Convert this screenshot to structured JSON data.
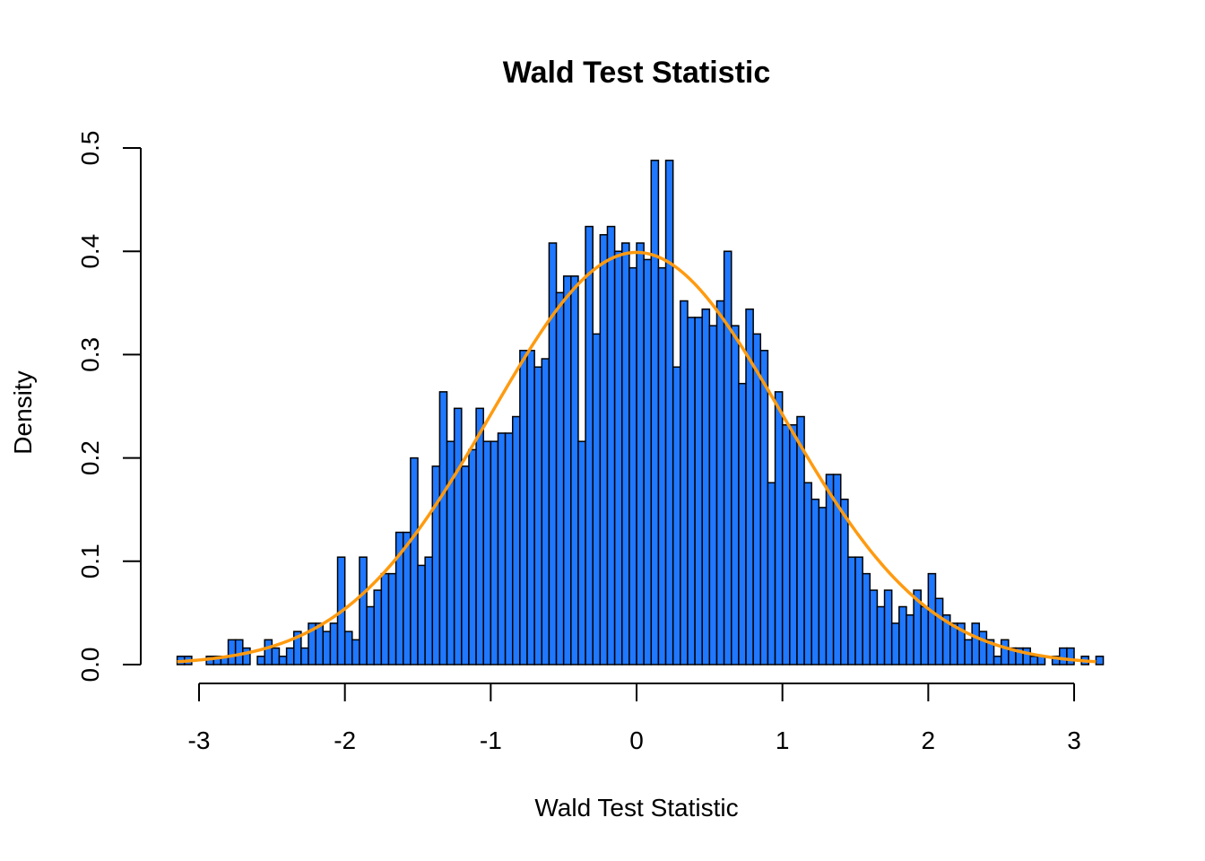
{
  "chart_data": {
    "type": "bar",
    "title": "Wald Test Statistic",
    "xlabel": "Wald Test Statistic",
    "ylabel": "Density",
    "xlim": [
      -3.15,
      3.15
    ],
    "ylim": [
      0,
      0.5
    ],
    "x_ticks": [
      -3,
      -2,
      -1,
      0,
      1,
      2,
      3
    ],
    "y_ticks": [
      0.0,
      0.1,
      0.2,
      0.3,
      0.4,
      0.5
    ],
    "y_tick_labels": [
      "0.0",
      "0.1",
      "0.2",
      "0.3",
      "0.4",
      "0.5"
    ],
    "bin_start": -3.15,
    "bin_width": 0.05,
    "bar_color": "#1f78ff",
    "curve_color": "#ff9a0f",
    "curve": {
      "type": "normal-density",
      "mean": 0,
      "sd": 1
    },
    "values": [
      0.008,
      0.008,
      0,
      0,
      0.008,
      0.008,
      0.008,
      0.024,
      0.024,
      0.016,
      0,
      0.008,
      0.024,
      0.016,
      0.008,
      0.016,
      0.032,
      0.016,
      0.04,
      0.04,
      0.032,
      0.04,
      0.104,
      0.032,
      0.024,
      0.104,
      0.056,
      0.072,
      0.088,
      0.088,
      0.128,
      0.128,
      0.2,
      0.096,
      0.104,
      0.192,
      0.264,
      0.216,
      0.248,
      0.192,
      0.208,
      0.248,
      0.216,
      0.216,
      0.224,
      0.224,
      0.24,
      0.304,
      0.304,
      0.288,
      0.296,
      0.408,
      0.36,
      0.376,
      0.376,
      0.216,
      0.424,
      0.32,
      0.416,
      0.424,
      0.4,
      0.408,
      0.384,
      0.408,
      0.392,
      0.488,
      0.384,
      0.488,
      0.288,
      0.352,
      0.336,
      0.336,
      0.344,
      0.328,
      0.352,
      0.4,
      0.328,
      0.272,
      0.344,
      0.32,
      0.304,
      0.176,
      0.264,
      0.232,
      0.232,
      0.24,
      0.176,
      0.16,
      0.152,
      0.184,
      0.184,
      0.16,
      0.104,
      0.104,
      0.088,
      0.072,
      0.056,
      0.072,
      0.04,
      0.056,
      0.048,
      0.072,
      0.056,
      0.088,
      0.064,
      0.048,
      0.04,
      0.04,
      0.024,
      0.04,
      0.032,
      0.024,
      0.008,
      0.024,
      0.016,
      0.016,
      0.016,
      0.008,
      0.008,
      0,
      0.008,
      0.016,
      0.016,
      0,
      0.008,
      0,
      0.008
    ]
  }
}
